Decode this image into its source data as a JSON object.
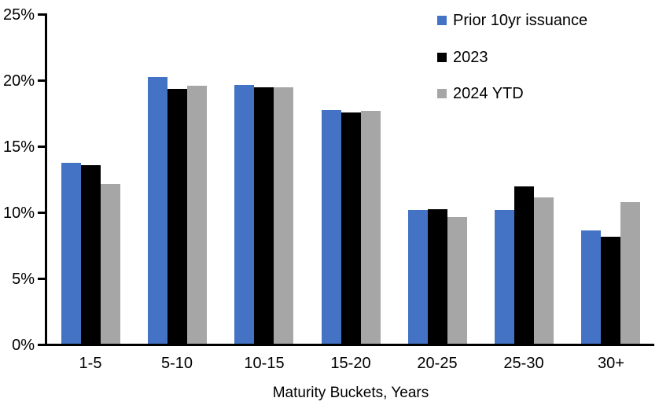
{
  "chart_data": {
    "type": "bar",
    "title": "",
    "xlabel": "Maturity Buckets, Years",
    "ylabel": "",
    "categories": [
      "1-5",
      "5-10",
      "10-15",
      "15-20",
      "20-25",
      "25-30",
      "30+"
    ],
    "series": [
      {
        "name": "Prior 10yr issuance",
        "color": "#4472C4",
        "values": [
          13.7,
          20.2,
          19.6,
          17.7,
          10.1,
          10.1,
          8.6
        ]
      },
      {
        "name": "2023",
        "color": "#000000",
        "values": [
          13.5,
          19.3,
          19.4,
          17.5,
          10.2,
          11.9,
          8.1
        ]
      },
      {
        "name": "2024 YTD",
        "color": "#A6A6A6",
        "values": [
          12.1,
          19.5,
          19.4,
          17.6,
          9.6,
          11.1,
          10.7
        ]
      }
    ],
    "ylim": [
      0,
      25
    ],
    "y_ticks": [
      0,
      5,
      10,
      15,
      20,
      25
    ],
    "y_tick_labels": [
      "0%",
      "5%",
      "10%",
      "15%",
      "20%",
      "25%"
    ],
    "grid": false,
    "legend_position": "top-right",
    "axis_color": "#000000",
    "text_color": "#000000"
  }
}
